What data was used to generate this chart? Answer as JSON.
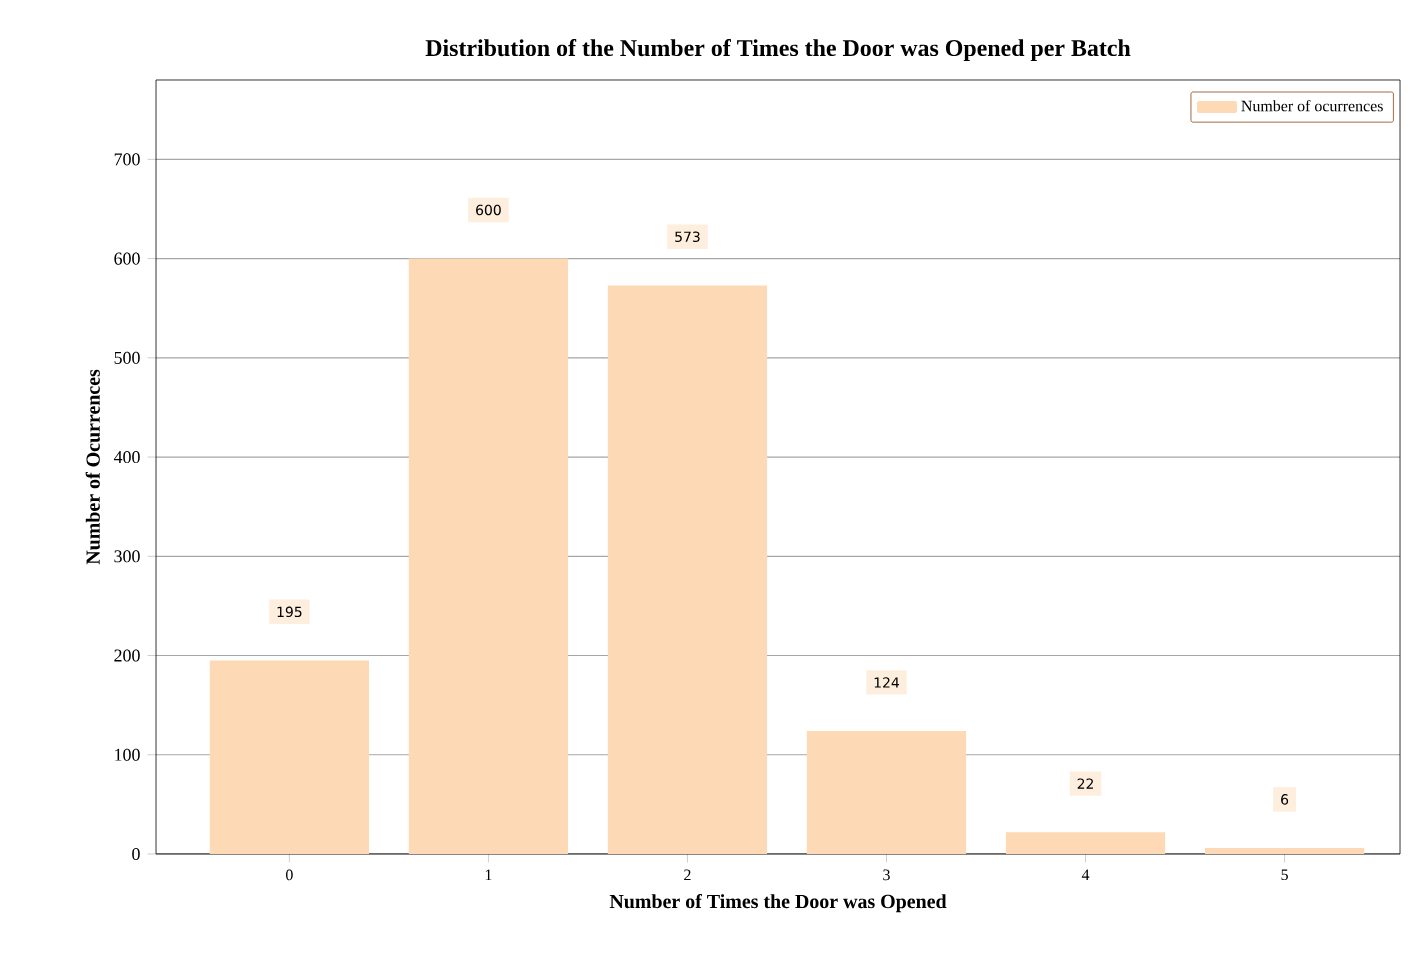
{
  "chart_data": {
    "type": "bar",
    "title": "Distribution of the Number of Times the Door was Opened per Batch",
    "xlabel": "Number of Times the Door was Opened",
    "ylabel": "Number of Ocurrences",
    "categories": [
      "0",
      "1",
      "2",
      "3",
      "4",
      "5"
    ],
    "series": [
      {
        "name": "Number of ocurrences",
        "color": "#fdd9b5",
        "values": [
          195,
          600,
          573,
          124,
          22,
          6
        ]
      }
    ],
    "ylim": [
      0,
      780
    ],
    "yticks": [
      0,
      100,
      200,
      300,
      400,
      500,
      600,
      700
    ],
    "grid": "y",
    "legend": "top right",
    "data_labels": true
  }
}
